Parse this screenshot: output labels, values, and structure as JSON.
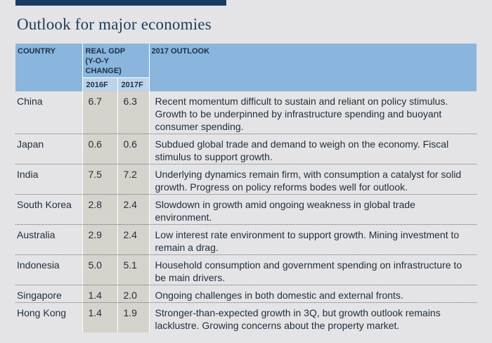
{
  "title": "Outlook for major economies",
  "header": {
    "country": "COUNTRY",
    "gdp_line1": "REAL GDP",
    "gdp_line2": "(Y-O-Y CHANGE)",
    "outlook": "2017 OUTLOOK",
    "year1": "2016F",
    "year2": "2017F"
  },
  "colors": {
    "header_blue": "#8ab5dc",
    "subheader_blue": "#bcd3e8",
    "gdp_column_shade": "#d6d3cd",
    "top_bar": "#1a3b64",
    "background": "#e4e4e6"
  },
  "rows": [
    {
      "country": "China",
      "y2016": "6.7",
      "y2017": "6.3",
      "outlook": "Recent momentum difficult to sustain and reliant on policy stimulus. Growth to be underpinned by infrastructure spending and buoyant consumer spending."
    },
    {
      "country": "Japan",
      "y2016": "0.6",
      "y2017": "0.6",
      "outlook": "Subdued global trade and demand to weigh on the economy. Fiscal stimulus to support growth."
    },
    {
      "country": "India",
      "y2016": "7.5",
      "y2017": "7.2",
      "outlook": "Underlying dynamics remain firm, with consumption a catalyst for solid growth. Progress on policy reforms bodes well for outlook."
    },
    {
      "country": "South Korea",
      "y2016": "2.8",
      "y2017": "2.4",
      "outlook": "Slowdown in growth amid ongoing weakness in global trade environment."
    },
    {
      "country": "Australia",
      "y2016": "2.9",
      "y2017": "2.4",
      "outlook": "Low interest rate environment to support growth. Mining investment to remain a drag."
    },
    {
      "country": "Indonesia",
      "y2016": "5.0",
      "y2017": "5.1",
      "outlook": "Household consumption and government spending on infrastructure to be main drivers."
    },
    {
      "country": "Singapore",
      "y2016": "1.4",
      "y2017": "2.0",
      "outlook": "Ongoing challenges in both domestic and external fronts."
    },
    {
      "country": "Hong Kong",
      "y2016": "1.4",
      "y2017": "1.9",
      "outlook": "Stronger-than-expected growth in 3Q, but growth outlook remains lacklustre. Growing concerns about the property market."
    }
  ]
}
